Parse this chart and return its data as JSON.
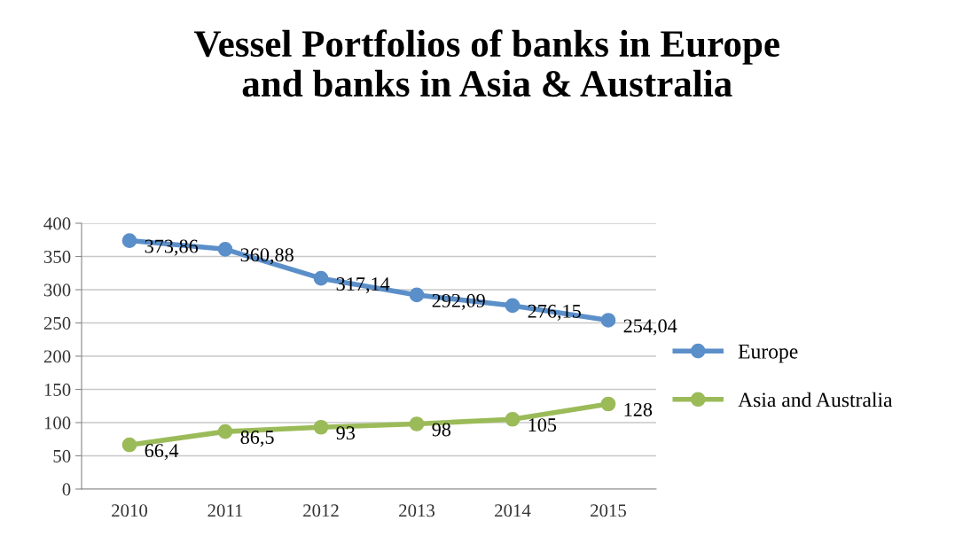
{
  "chart_data": {
    "type": "line",
    "title": "Vessel Portfolios of banks in Europe\nand banks in Asia & Australia",
    "categories": [
      "2010",
      "2011",
      "2012",
      "2013",
      "2014",
      "2015"
    ],
    "series": [
      {
        "name": "Europe",
        "color": "#5b8fc9",
        "values": [
          373.86,
          360.88,
          317.14,
          292.09,
          276.15,
          254.04
        ],
        "value_labels": [
          "373,86",
          "360,88",
          "317,14",
          "292,09",
          "276,15",
          "254,04"
        ]
      },
      {
        "name": "Asia and Australia",
        "color": "#9bbb59",
        "values": [
          66.4,
          86.5,
          93,
          98,
          105,
          128
        ],
        "value_labels": [
          "66,4",
          "86,5",
          "93",
          "98",
          "105",
          "128"
        ]
      }
    ],
    "ylim": [
      0,
      400
    ],
    "yticks": [
      0,
      50,
      100,
      150,
      200,
      250,
      300,
      350,
      400
    ],
    "grid": "y",
    "legend": "right",
    "marker": "circle",
    "line_style": "solid"
  }
}
